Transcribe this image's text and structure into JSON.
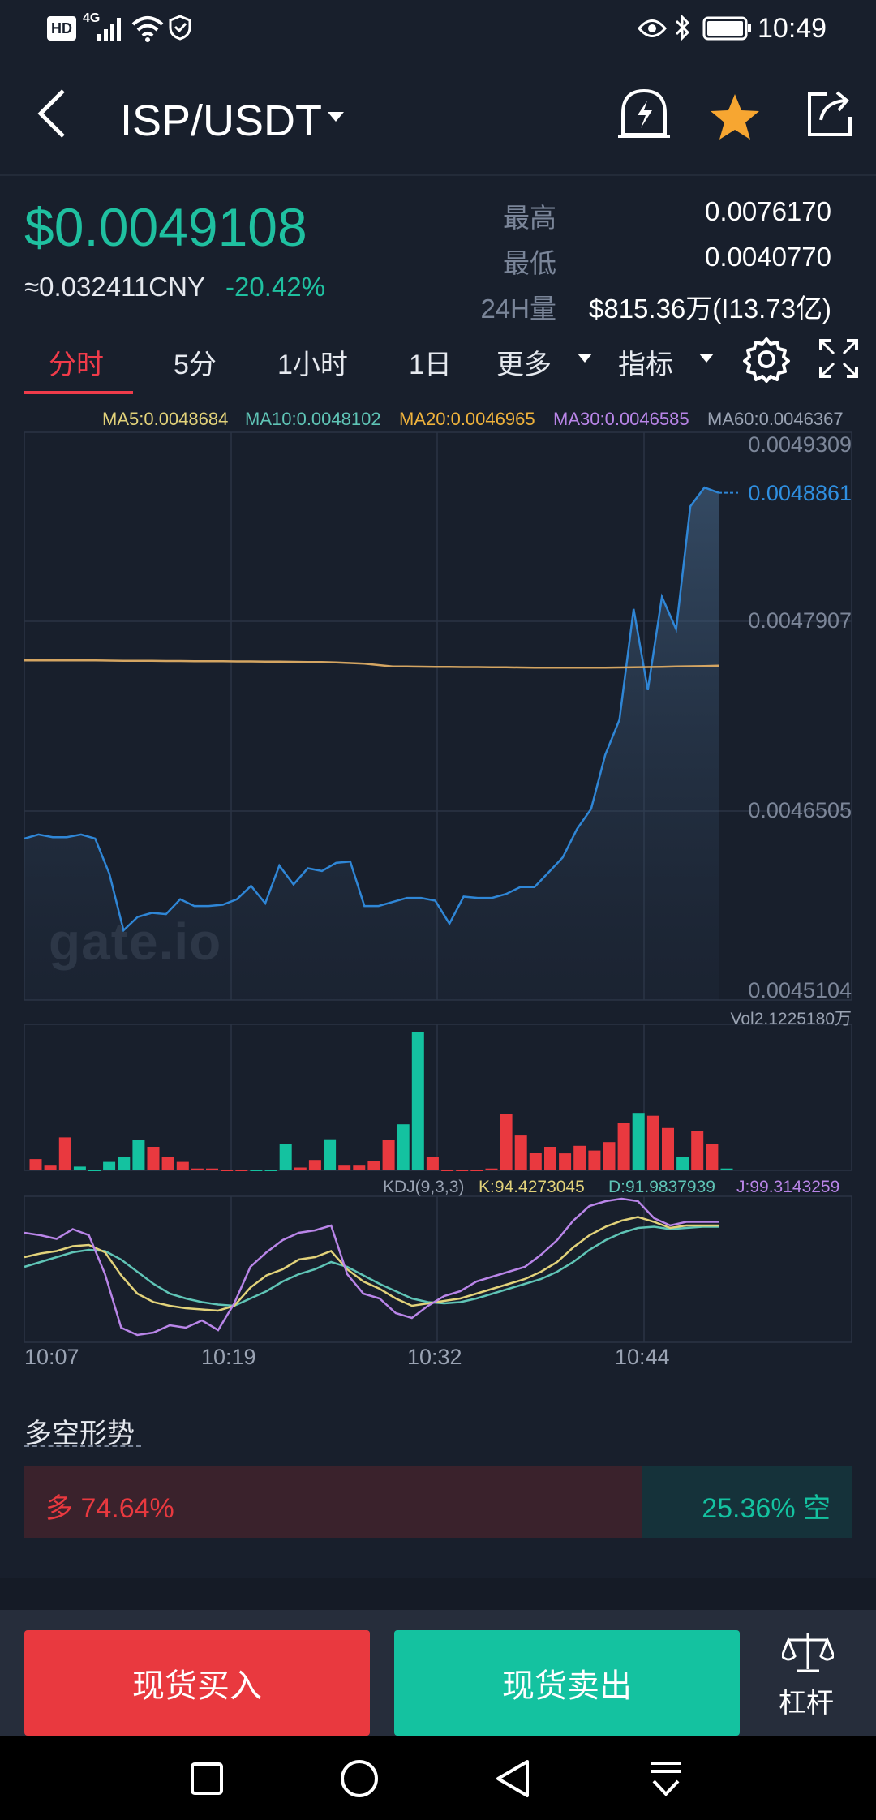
{
  "status_bar": {
    "hd": "HD",
    "network": "4G",
    "time": "10:49"
  },
  "header": {
    "pair": "ISP/USDT",
    "back_icon": "back-arrow-icon",
    "alert_icon": "price-alert-bell-icon",
    "favorite_icon": "star-icon",
    "share_icon": "share-icon",
    "favorite_color": "#f7a631"
  },
  "ticker": {
    "price": "$0.0049108",
    "cny": "≈0.032411CNY",
    "change": "-20.42%",
    "high_label": "最高",
    "high_value": "0.0076170",
    "low_label": "最低",
    "low_value": "0.0040770",
    "vol_label": "24H量",
    "vol_value": "$815.36万(I13.73亿)"
  },
  "tabs": {
    "items": [
      "分时",
      "5分",
      "1小时",
      "1日"
    ],
    "more": "更多",
    "indicator": "指标",
    "active": "分时"
  },
  "chart_data": {
    "type": "line",
    "ma_legend": {
      "ma5": "MA5:0.0048684",
      "ma10": "MA10:0.0048102",
      "ma20": "MA20:0.0046965",
      "ma30": "MA30:0.0046585",
      "ma60": "MA60:0.0046367"
    },
    "y_ticks": [
      "0.0049309",
      "0.0047907",
      "0.0046505",
      "0.0045104"
    ],
    "ylim": [
      0.0045104,
      0.0049309
    ],
    "current_price_label": "0.0048861",
    "x_ticks": [
      "10:07",
      "10:19",
      "10:32",
      "10:44"
    ],
    "price": [
      0.00463,
      0.004633,
      0.004631,
      0.004631,
      0.004633,
      0.00463,
      0.004604,
      0.004562,
      0.004572,
      0.004575,
      0.004574,
      0.004585,
      0.00458,
      0.00458,
      0.004581,
      0.004585,
      0.004595,
      0.004582,
      0.00461,
      0.004596,
      0.004608,
      0.004606,
      0.004612,
      0.004613,
      0.00458,
      0.00458,
      0.004583,
      0.004586,
      0.004586,
      0.004584,
      0.004567,
      0.004587,
      0.004586,
      0.004586,
      0.004589,
      0.004594,
      0.004594,
      0.004605,
      0.004616,
      0.004637,
      0.004652,
      0.004692,
      0.004718,
      0.0048,
      0.00474,
      0.004809,
      0.004785,
      0.004876,
      0.00489,
      0.0048861
    ],
    "ma_line": [
      0.004762,
      0.004762,
      0.004762,
      0.004762,
      0.004762,
      0.004762,
      0.0047618,
      0.0047617,
      0.0047616,
      0.0047616,
      0.0047615,
      0.0047615,
      0.0047614,
      0.0047614,
      0.0047613,
      0.0047612,
      0.0047612,
      0.0047611,
      0.004761,
      0.0047609,
      0.0047608,
      0.0047607,
      0.0047605,
      0.00476,
      0.0047595,
      0.0047585,
      0.0047575,
      0.0047574,
      0.0047573,
      0.0047572,
      0.0047571,
      0.004757,
      0.004757,
      0.0047569,
      0.0047568,
      0.0047567,
      0.0047566,
      0.0047565,
      0.0047565,
      0.0047565,
      0.0047565,
      0.0047566,
      0.0047567,
      0.0047568,
      0.004757,
      0.0047572,
      0.0047574,
      0.0047576,
      0.0047578,
      0.004758
    ],
    "volume_label": "Vol2.1225180万",
    "volume": [
      12,
      5,
      35,
      4,
      0,
      9,
      14,
      32,
      25,
      14,
      9,
      2,
      2,
      0,
      0,
      0,
      0,
      28,
      3,
      11,
      33,
      5,
      5,
      10,
      32,
      49,
      147,
      14,
      0,
      0,
      0,
      2,
      60,
      37,
      19,
      25,
      18,
      26,
      21,
      30,
      50,
      61,
      58,
      45,
      14,
      42,
      28,
      2
    ],
    "volume_colors": [
      "r",
      "r",
      "r",
      "g",
      "g",
      "g",
      "g",
      "g",
      "r",
      "r",
      "r",
      "r",
      "r",
      "r",
      "r",
      "g",
      "g",
      "g",
      "r",
      "r",
      "g",
      "r",
      "r",
      "r",
      "r",
      "g",
      "g",
      "r",
      "r",
      "r",
      "r",
      "r",
      "r",
      "r",
      "r",
      "r",
      "r",
      "r",
      "r",
      "r",
      "r",
      "g",
      "r",
      "r",
      "g",
      "r",
      "r",
      "g"
    ],
    "kdj_label": "KDJ(9,3,3)",
    "kdj_k_label": "K:94.4273045",
    "kdj_d_label": "D:91.9837939",
    "kdj_j_label": "J:99.3143259",
    "kdj_k": [
      70,
      73,
      75,
      79,
      80,
      74,
      55,
      40,
      33,
      30,
      28,
      27,
      26,
      30,
      45,
      55,
      60,
      68,
      70,
      75,
      60,
      50,
      44,
      36,
      30,
      32,
      34,
      36,
      40,
      44,
      48,
      52,
      58,
      66,
      78,
      88,
      95,
      100,
      103,
      99,
      94,
      96,
      96,
      96
    ],
    "kdj_d": [
      62,
      66,
      70,
      74,
      76,
      75,
      68,
      58,
      48,
      40,
      36,
      33,
      31,
      30,
      36,
      42,
      50,
      56,
      60,
      66,
      62,
      55,
      48,
      42,
      36,
      33,
      32,
      33,
      36,
      40,
      44,
      48,
      52,
      58,
      66,
      76,
      84,
      90,
      94,
      95,
      93,
      94,
      95,
      95
    ],
    "kdj_j": [
      90,
      88,
      85,
      93,
      88,
      56,
      12,
      6,
      8,
      14,
      12,
      18,
      10,
      32,
      62,
      74,
      84,
      90,
      92,
      96,
      56,
      40,
      36,
      24,
      20,
      30,
      38,
      42,
      50,
      54,
      58,
      62,
      72,
      84,
      100,
      112,
      116,
      118,
      116,
      102,
      96,
      99,
      99,
      99
    ]
  },
  "long_short": {
    "title": "多空形势",
    "long_label": "多 74.64%",
    "short_label": "25.36% 空",
    "long_ratio": 0.7464
  },
  "bottom": {
    "buy": "现货买入",
    "sell": "现货卖出",
    "leverage": "杠杆",
    "buy_color": "#e9393f",
    "sell_color": "#14c2a0"
  },
  "watermark": "gate.io"
}
